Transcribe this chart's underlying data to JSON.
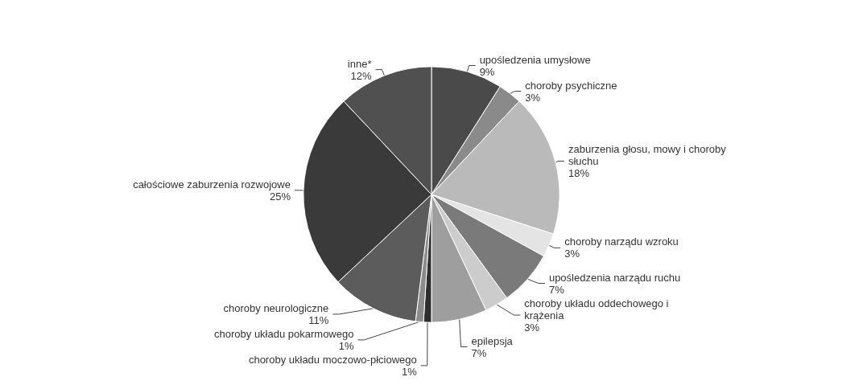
{
  "chart_data": {
    "type": "pie",
    "categories": [
      "upośledzenia umysłowe",
      "choroby psychiczne",
      "zaburzenia głosu, mowy i choroby słuchu",
      "choroby narządu wzroku",
      "upośledzenia narządu ruchu",
      "choroby układu oddechowego i krążenia",
      "epilepsja",
      "choroby układu moczowo-płciowego",
      "choroby układu pokarmowego",
      "choroby neurologiczne",
      "całościowe zaburzenia rozwojowe",
      "inne*"
    ],
    "values": [
      9,
      3,
      18,
      3,
      7,
      3,
      7,
      1,
      1,
      11,
      25,
      12
    ],
    "colors": [
      "#4a4a4a",
      "#8a8a8a",
      "#bababa",
      "#e4e4e4",
      "#7a7a7a",
      "#cccccc",
      "#9e9e9e",
      "#2e2e2e",
      "#8c8c8c",
      "#5c5c5c",
      "#3a3a3a",
      "#505050"
    ],
    "value_labels": [
      "9%",
      "3%",
      "18%",
      "3%",
      "7%",
      "3%",
      "7%",
      "1%",
      "1%",
      "11%",
      "25%",
      "12%"
    ]
  }
}
